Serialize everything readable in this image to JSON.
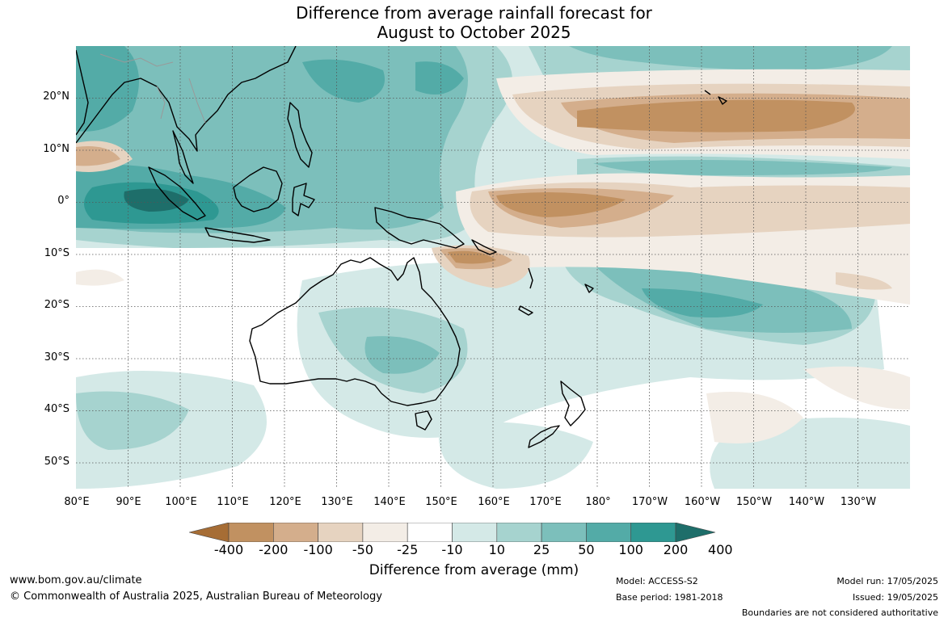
{
  "title_line1": "Difference from average rainfall forecast for",
  "title_line2": "August to October 2025",
  "lat_labels": [
    "20°N",
    "10°N",
    "0°",
    "10°S",
    "20°S",
    "30°S",
    "40°S",
    "50°S"
  ],
  "lon_labels": [
    "80°E",
    "90°E",
    "100°E",
    "110°E",
    "120°E",
    "130°E",
    "140°E",
    "150°E",
    "160°E",
    "170°E",
    "180°",
    "170°W",
    "160°W",
    "150°W",
    "140°W",
    "130°W"
  ],
  "colorbar": {
    "ticks": [
      "-400",
      "-200",
      "-100",
      "-50",
      "-25",
      "-10",
      "10",
      "25",
      "50",
      "100",
      "200",
      "400"
    ],
    "colors": [
      "#a66d35",
      "#c19161",
      "#d4ae8c",
      "#e6d3c0",
      "#f3ede6",
      "#ffffff",
      "#d4e9e7",
      "#a6d3cf",
      "#7cbfbb",
      "#53aba7",
      "#2e9892",
      "#1e6e6a"
    ],
    "label": "Difference from average (mm)"
  },
  "footer": {
    "url": "www.bom.gov.au/climate",
    "copyright": "© Commonwealth of Australia 2025, Australian Bureau of Meteorology",
    "model": "Model: ACCESS-S2",
    "base_period": "Base period: 1981-2018",
    "model_run": "Model run: 17/05/2025",
    "issued": "Issued: 19/05/2025",
    "disclaimer": "Boundaries are not considered authoritative"
  }
}
